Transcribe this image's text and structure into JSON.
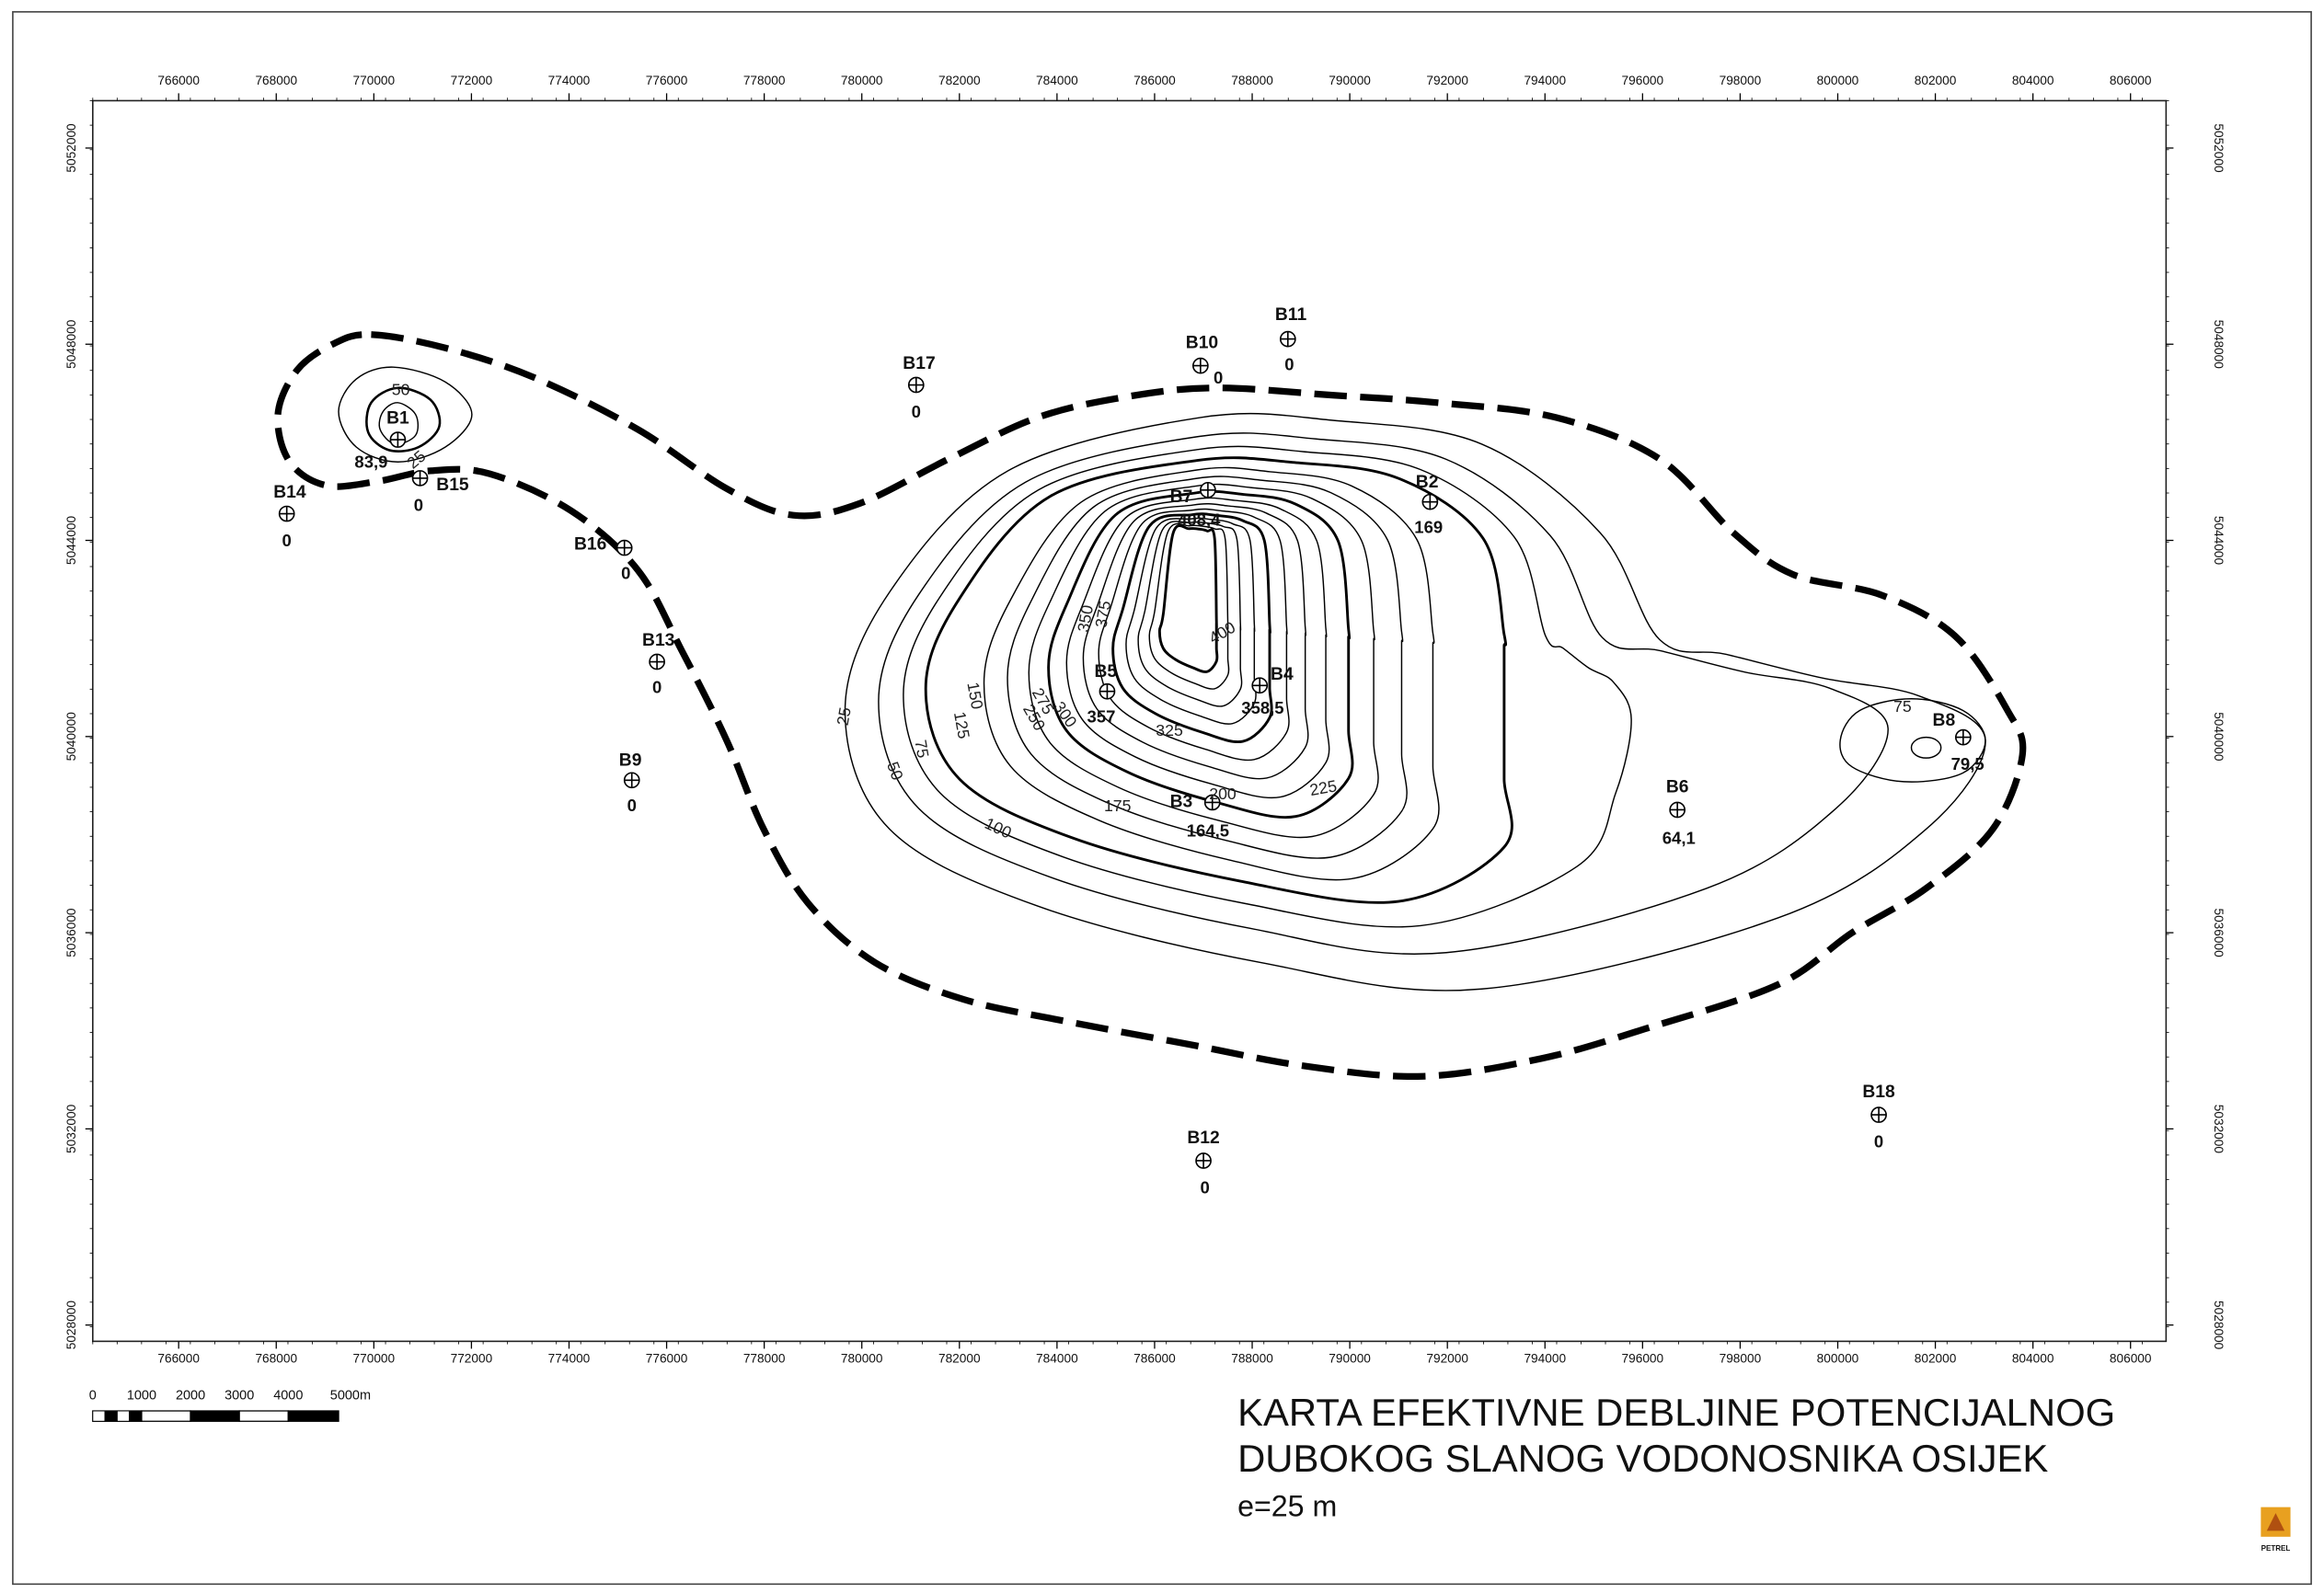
{
  "map": {
    "x_ticks": [
      766000,
      768000,
      770000,
      772000,
      774000,
      776000,
      778000,
      780000,
      782000,
      784000,
      786000,
      788000,
      790000,
      792000,
      794000,
      796000,
      798000,
      800000,
      802000,
      804000,
      806000
    ],
    "y_ticks": [
      5028000,
      5032000,
      5036000,
      5040000,
      5044000,
      5048000,
      5052000
    ],
    "wells": [
      {
        "name": "B1",
        "value": "83,9"
      },
      {
        "name": "B15",
        "value": "0"
      },
      {
        "name": "B14",
        "value": "0"
      },
      {
        "name": "B16",
        "value": "0"
      },
      {
        "name": "B13",
        "value": "0"
      },
      {
        "name": "B9",
        "value": "0"
      },
      {
        "name": "B17",
        "value": "0"
      },
      {
        "name": "B10",
        "value": "0"
      },
      {
        "name": "B11",
        "value": "0"
      },
      {
        "name": "B7",
        "value": "408,4"
      },
      {
        "name": "B2",
        "value": "169"
      },
      {
        "name": "B4",
        "value": "358,5"
      },
      {
        "name": "B5",
        "value": "357"
      },
      {
        "name": "B3",
        "value": "164,5"
      },
      {
        "name": "B6",
        "value": "64,1"
      },
      {
        "name": "B8",
        "value": "79,5"
      },
      {
        "name": "B12",
        "value": "0"
      },
      {
        "name": "B18",
        "value": "0"
      }
    ],
    "contour_labels": [
      "50",
      "25",
      "25",
      "50",
      "75",
      "100",
      "125",
      "150",
      "175",
      "200",
      "225",
      "250",
      "275",
      "300",
      "325",
      "350",
      "375",
      "400",
      "75"
    ],
    "scale_bar": [
      "0",
      "1000",
      "2000",
      "3000",
      "4000",
      "5000m"
    ],
    "title": [
      "KARTA EFEKTIVNE DEBLJINE POTENCIJALNOG",
      "DUBOKOG SLANOG VODONOSNIKA OSIJEK"
    ],
    "subtitle": "e=25 m",
    "logo": "PETREL"
  }
}
